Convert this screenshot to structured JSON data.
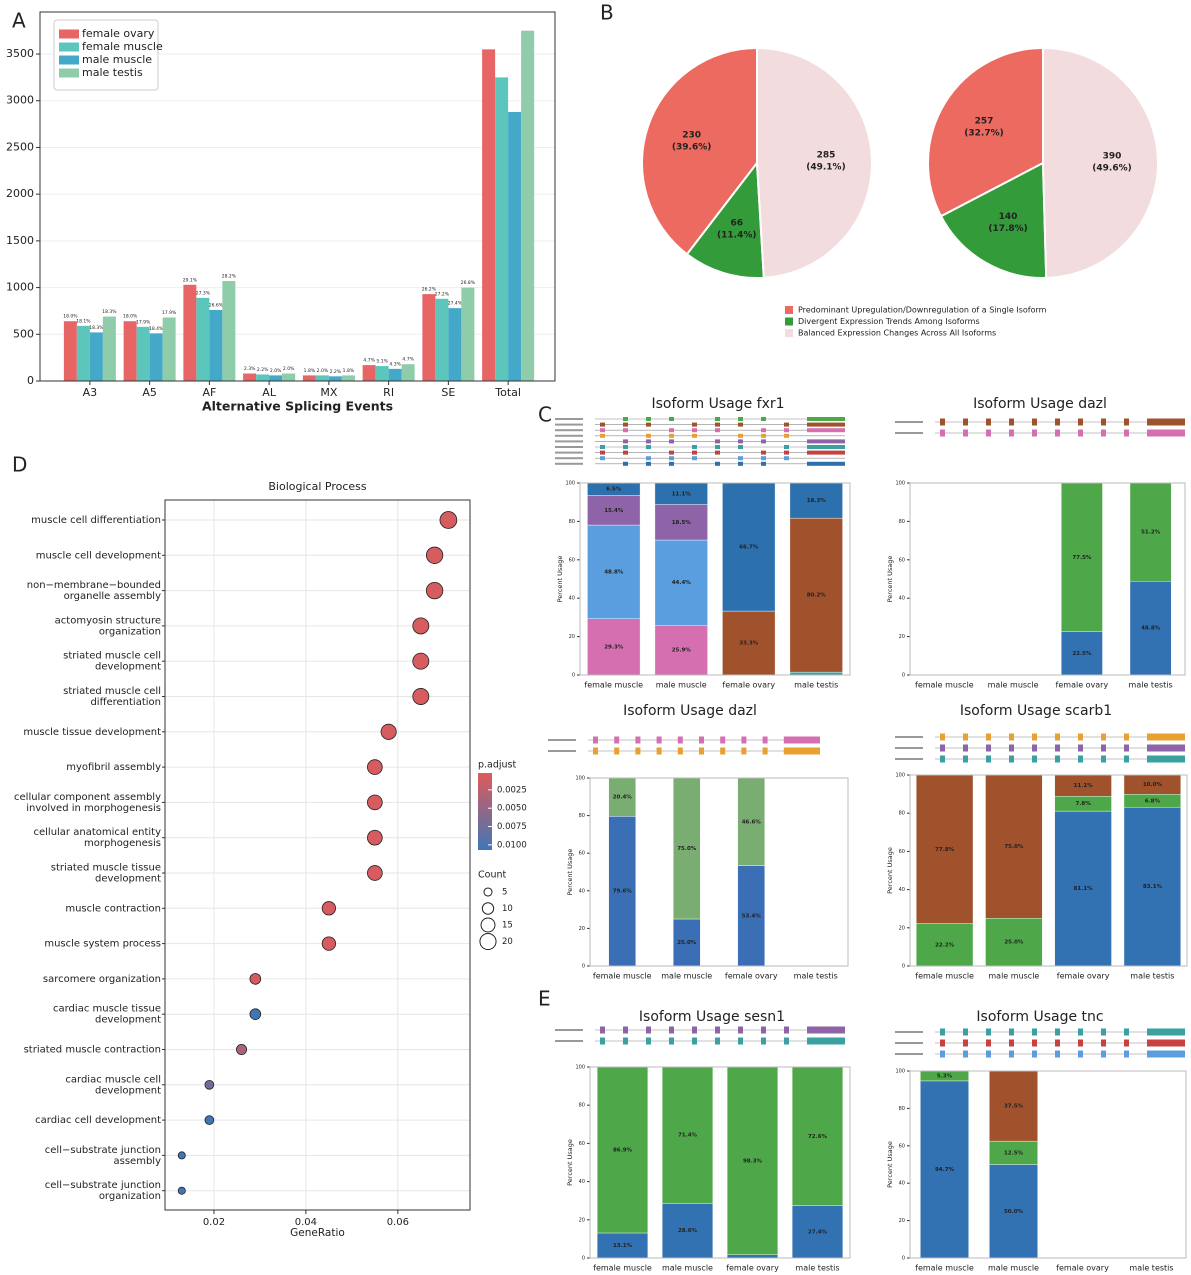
{
  "panel_labels": [
    "A",
    "B",
    "C",
    "D",
    "E"
  ],
  "chart_data": [
    {
      "type": "bar",
      "xlabel": "Alternative Splicing Events",
      "categories": [
        "A3",
        "A5",
        "AF",
        "AL",
        "MX",
        "RI",
        "SE",
        "Total"
      ],
      "ylim": [
        0,
        3950
      ],
      "yticks": [
        0,
        500,
        1000,
        1500,
        2000,
        2500,
        3000,
        3500
      ],
      "grid": true,
      "legend": "upper left",
      "series": [
        {
          "name": "female ovary",
          "color": "#e86566",
          "values": [
            640,
            640,
            1030,
            80,
            60,
            170,
            930,
            3550
          ],
          "percent_labels": [
            "18.0%",
            "18.0%",
            "29.1%",
            "2.3%",
            "1.8%",
            "4.7%",
            "26.2%"
          ]
        },
        {
          "name": "female muscle",
          "color": "#5cc6bd",
          "values": [
            590,
            580,
            890,
            70,
            60,
            160,
            880,
            3250
          ],
          "percent_labels": [
            "18.1%",
            "17.9%",
            "27.3%",
            "2.2%",
            "2.0%",
            "5.1%",
            "27.2%"
          ]
        },
        {
          "name": "male muscle",
          "color": "#44a8c9",
          "values": [
            520,
            510,
            760,
            60,
            50,
            130,
            780,
            2880
          ],
          "percent_labels": [
            "18.3%",
            "18.4%",
            "26.6%",
            "2.0%",
            "2.2%",
            "4.3%",
            "27.4%"
          ]
        },
        {
          "name": "male testis",
          "color": "#8fccaa",
          "values": [
            690,
            680,
            1070,
            80,
            60,
            180,
            1000,
            3750
          ],
          "percent_labels": [
            "18.3%",
            "17.9%",
            "28.2%",
            "2.0%",
            "1.8%",
            "4.7%",
            "26.8%"
          ]
        }
      ]
    },
    {
      "type": "pie",
      "categories": [
        "Predominant Upregulation/Downregulation of a Single Isoform",
        "Divergent Expression Trends Among Isoforms",
        "Balanced Expression Changes Across All Isoforms"
      ],
      "colors": [
        "#ec6a5f",
        "#339b3a",
        "#f2dcdd"
      ],
      "pies": [
        {
          "values": [
            230,
            66,
            285
          ],
          "percent_labels": [
            "(39.6%)",
            "(11.4%)",
            "(49.1%)"
          ]
        },
        {
          "values": [
            257,
            140,
            390
          ],
          "percent_labels": [
            "(32.7%)",
            "(17.8%)",
            "(49.6%)"
          ]
        }
      ]
    },
    {
      "type": "stacked_bar",
      "title": "Isoform Usage fxr1",
      "ylabel": "Percent Usage",
      "categories": [
        "female muscle",
        "male muscle",
        "female ovary",
        "male testis"
      ],
      "ylim": [
        0,
        100
      ],
      "yticks": [
        0,
        20,
        40,
        60,
        80,
        100
      ],
      "series": [
        {
          "color": "#d66fb0",
          "values": [
            29.3,
            25.9,
            null,
            null
          ],
          "value_labels": [
            "29.3%",
            "25.9%",
            null,
            null
          ]
        },
        {
          "color": "#5a9ee0",
          "values": [
            48.8,
            44.4,
            null,
            null
          ],
          "value_labels": [
            "48.8%",
            "44.4%",
            null,
            null
          ]
        },
        {
          "color": "#8e63a8",
          "values": [
            15.4,
            18.5,
            null,
            null
          ],
          "value_labels": [
            "15.4%",
            "18.5%",
            null,
            null
          ]
        },
        {
          "color": "#3aa0a0",
          "values": [
            null,
            null,
            null,
            1.5
          ],
          "value_labels": [
            null,
            null,
            null,
            null
          ]
        },
        {
          "color": "#a0522d",
          "values": [
            null,
            null,
            33.3,
            80.2
          ],
          "value_labels": [
            null,
            null,
            "33.3%",
            "80.2%"
          ]
        },
        {
          "color": "#2c70ad",
          "values": [
            6.5,
            11.1,
            66.7,
            18.3
          ],
          "value_labels": [
            "6.5%",
            "11.1%",
            "66.7%",
            "18.3%"
          ]
        }
      ]
    },
    {
      "type": "stacked_bar",
      "title": "Isoform Usage dazl",
      "ylabel": "Percent Usage",
      "categories": [
        "female muscle",
        "male muscle",
        "female ovary",
        "male testis"
      ],
      "ylim": [
        0,
        100
      ],
      "yticks": [
        0,
        20,
        40,
        60,
        80,
        100
      ],
      "series": [
        {
          "color": "#3272b3",
          "values": [
            null,
            null,
            22.5,
            48.8
          ],
          "value_labels": [
            null,
            null,
            "22.5%",
            "48.8%"
          ]
        },
        {
          "color": "#4ea84a",
          "values": [
            null,
            null,
            77.5,
            51.2
          ],
          "value_labels": [
            null,
            null,
            "77.5%",
            "51.2%"
          ]
        }
      ]
    },
    {
      "type": "stacked_bar",
      "title": "Isoform Usage dazl",
      "ylabel": "Percent Usage",
      "categories": [
        "female muscle",
        "male muscle",
        "female ovary",
        "male testis"
      ],
      "ylim": [
        0,
        100
      ],
      "yticks": [
        0,
        20,
        40,
        60,
        80,
        100
      ],
      "series": [
        {
          "color": "#3a6fb5",
          "values": [
            79.6,
            25.0,
            53.4,
            null
          ],
          "value_labels": [
            "79.6%",
            "25.0%",
            "53.4%",
            null
          ]
        },
        {
          "color": "#7aad72",
          "values": [
            20.4,
            75.0,
            46.6,
            null
          ],
          "value_labels": [
            "20.4%",
            "75.0%",
            "46.6%",
            null
          ]
        }
      ]
    },
    {
      "type": "stacked_bar",
      "title": "Isoform Usage scarb1",
      "ylabel": "Percent Usage",
      "categories": [
        "female muscle",
        "male muscle",
        "female ovary",
        "male testis"
      ],
      "ylim": [
        0,
        100
      ],
      "yticks": [
        0,
        20,
        40,
        60,
        80,
        100
      ],
      "series": [
        {
          "color": "#3272b3",
          "values": [
            null,
            null,
            81.1,
            83.1
          ],
          "value_labels": [
            null,
            null,
            "81.1%",
            "83.1%"
          ]
        },
        {
          "color": "#4ea84a",
          "values": [
            22.2,
            25.0,
            7.8,
            6.8
          ],
          "value_labels": [
            "22.2%",
            "25.0%",
            "7.8%",
            "6.8%"
          ]
        },
        {
          "color": "#a0522d",
          "values": [
            77.8,
            75.0,
            11.1,
            10.0
          ],
          "value_labels": [
            "77.8%",
            "75.0%",
            "11.1%",
            "10.0%"
          ]
        }
      ]
    },
    {
      "type": "stacked_bar",
      "title": "Isoform Usage sesn1",
      "ylabel": "Percent Usage",
      "categories": [
        "female muscle",
        "male muscle",
        "female ovary",
        "male testis"
      ],
      "ylim": [
        0,
        100
      ],
      "yticks": [
        0,
        20,
        40,
        60,
        80,
        100
      ],
      "series": [
        {
          "color": "#3272b3",
          "values": [
            13.1,
            28.6,
            1.7,
            27.4
          ],
          "value_labels": [
            "13.1%",
            "28.6%",
            null,
            "27.4%"
          ]
        },
        {
          "color": "#4ea84a",
          "values": [
            86.9,
            71.4,
            98.3,
            72.6
          ],
          "value_labels": [
            "86.9%",
            "71.4%",
            "98.3%",
            "72.6%"
          ]
        }
      ]
    },
    {
      "type": "stacked_bar",
      "title": "Isoform Usage tnc",
      "ylabel": "Percent Usage",
      "categories": [
        "female muscle",
        "male muscle",
        "female ovary",
        "male testis"
      ],
      "ylim": [
        0,
        100
      ],
      "yticks": [
        0,
        20,
        40,
        60,
        80,
        100
      ],
      "series": [
        {
          "color": "#3272b3",
          "values": [
            94.7,
            50.0,
            null,
            null
          ],
          "value_labels": [
            "94.7%",
            "50.0%",
            null,
            null
          ]
        },
        {
          "color": "#4ea84a",
          "values": [
            5.3,
            12.5,
            null,
            null
          ],
          "value_labels": [
            "5.3%",
            "12.5%",
            null,
            null
          ]
        },
        {
          "color": "#a0522d",
          "values": [
            null,
            37.5,
            null,
            null
          ],
          "value_labels": [
            null,
            "37.5%",
            null,
            null
          ]
        }
      ]
    },
    {
      "type": "dot",
      "title": "Biological Process",
      "xlabel": "GeneRatio",
      "categories": [
        [
          "muscle cell differentiation"
        ],
        [
          "muscle cell development"
        ],
        [
          "non−membrane−bounded",
          "organelle assembly"
        ],
        [
          "actomyosin structure",
          "organization"
        ],
        [
          "striated muscle cell",
          "development"
        ],
        [
          "striated muscle cell",
          "differentiation"
        ],
        [
          "muscle tissue development"
        ],
        [
          "myofibril assembly"
        ],
        [
          "cellular component assembly",
          "involved in morphogenesis"
        ],
        [
          "cellular anatomical entity",
          "morphogenesis"
        ],
        [
          "striated muscle tissue",
          "development"
        ],
        [
          "muscle contraction"
        ],
        [
          "muscle system process"
        ],
        [
          "sarcomere organization"
        ],
        [
          "cardiac muscle tissue",
          "development"
        ],
        [
          "striated muscle contraction"
        ],
        [
          "cardiac muscle cell",
          "development"
        ],
        [
          "cardiac cell development"
        ],
        [
          "cell−substrate junction",
          "assembly"
        ],
        [
          "cell−substrate junction",
          "organization"
        ]
      ],
      "x": [
        0.071,
        0.068,
        0.068,
        0.065,
        0.065,
        0.065,
        0.058,
        0.055,
        0.055,
        0.055,
        0.055,
        0.045,
        0.045,
        0.029,
        0.029,
        0.026,
        0.019,
        0.019,
        0.013,
        0.013
      ],
      "count": [
        22,
        21,
        21,
        20,
        20,
        20,
        18,
        17,
        17,
        17,
        17,
        14,
        14,
        9,
        9,
        8,
        6,
        6,
        4,
        4
      ],
      "p_adjust": [
        0.0008,
        0.0008,
        0.0008,
        0.0008,
        0.0008,
        0.0008,
        0.0008,
        0.0008,
        0.0008,
        0.0008,
        0.0008,
        0.0008,
        0.0008,
        0.001,
        0.0105,
        0.0035,
        0.0075,
        0.0105,
        0.0105,
        0.0105
      ],
      "xlim": [
        0.00935,
        0.0757
      ],
      "xticks": [
        0.02,
        0.04,
        0.06
      ],
      "grid": true,
      "color_title": "p.adjust",
      "color_lim": [
        0.0002,
        0.0107
      ],
      "color_range": [
        "#e05a5a",
        "#3e77b6"
      ],
      "color_ticks": [
        {
          "value": 0.0025,
          "label": "0.0025"
        },
        {
          "value": 0.005,
          "label": "0.0050"
        },
        {
          "value": 0.0075,
          "label": "0.0075"
        },
        {
          "value": 0.01,
          "label": "0.0100"
        }
      ],
      "size_title": "Count",
      "size_ticks": [
        5,
        10,
        15,
        20
      ]
    }
  ]
}
